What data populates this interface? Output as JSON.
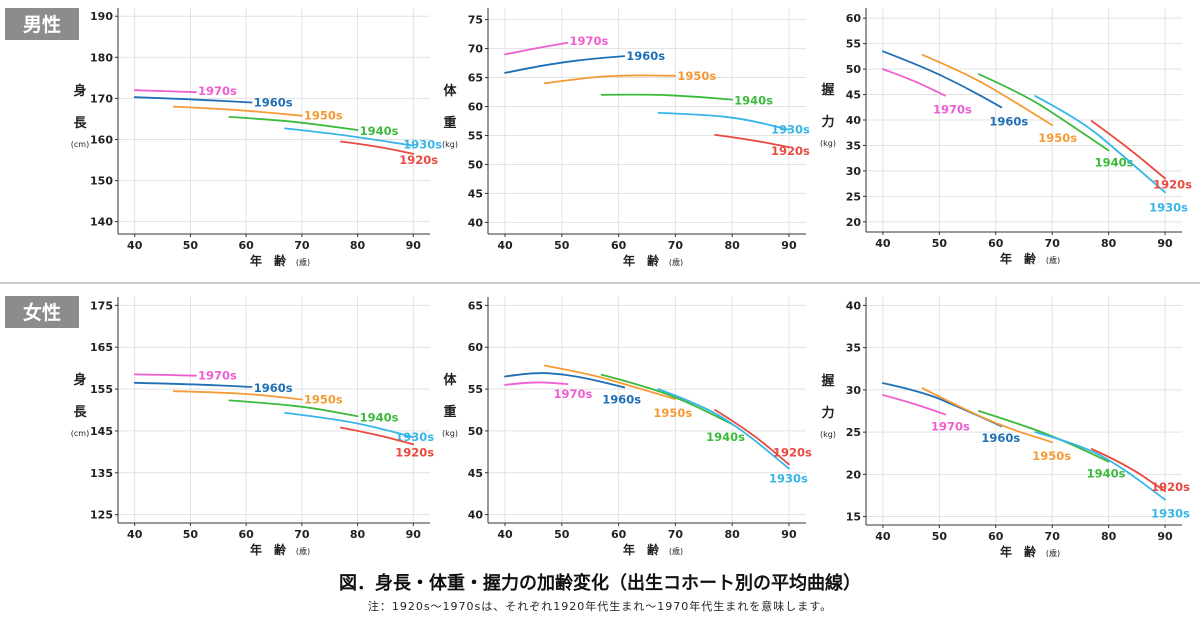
{
  "sections": [
    {
      "label": "男性"
    },
    {
      "label": "女性"
    }
  ],
  "colors": {
    "1920s": "#ea4a3f",
    "1930s": "#38b6ea",
    "1940s": "#3cba3c",
    "1950s": "#f59b35",
    "1960s": "#1f6fb5",
    "1970s": "#f05fd2"
  },
  "xlabel": "年　齢",
  "xunit": "(歳)",
  "caption": "図．身長・体重・握力の加齢変化（出生コホート別の平均曲線）",
  "note": "注：1920s～1970sは、それぞれ1920年代生まれ～1970年代生まれを意味します。",
  "chart_data": [
    {
      "type": "line",
      "section": "男性",
      "ylabel": [
        "身",
        "長"
      ],
      "yunit": "(cm)",
      "xlim": [
        37,
        93
      ],
      "ylim": [
        137,
        192
      ],
      "xticks": [
        40,
        50,
        60,
        70,
        80,
        90
      ],
      "yticks": [
        140,
        150,
        160,
        170,
        180,
        190
      ],
      "series": [
        {
          "name": "1970s",
          "points": [
            [
              40,
              172.0
            ],
            [
              45,
              171.8
            ],
            [
              51,
              171.5
            ]
          ]
        },
        {
          "name": "1960s",
          "points": [
            [
              40,
              170.3
            ],
            [
              50,
              169.8
            ],
            [
              61,
              169.0
            ]
          ]
        },
        {
          "name": "1950s",
          "points": [
            [
              47,
              168.0
            ],
            [
              55,
              167.5
            ],
            [
              62,
              166.8
            ],
            [
              70,
              165.8
            ]
          ]
        },
        {
          "name": "1940s",
          "points": [
            [
              57,
              165.5
            ],
            [
              65,
              164.8
            ],
            [
              72,
              163.8
            ],
            [
              80,
              162.3
            ]
          ]
        },
        {
          "name": "1930s",
          "points": [
            [
              67,
              162.7
            ],
            [
              75,
              161.5
            ],
            [
              82,
              160.2
            ],
            [
              90,
              158.5
            ]
          ]
        },
        {
          "name": "1920s",
          "points": [
            [
              77,
              159.5
            ],
            [
              83,
              158.5
            ],
            [
              90,
              156.5
            ]
          ]
        }
      ]
    },
    {
      "type": "line",
      "section": "男性",
      "ylabel": [
        "体",
        "重"
      ],
      "yunit": "(kg)",
      "xlim": [
        37,
        93
      ],
      "ylim": [
        38,
        77
      ],
      "xticks": [
        40,
        50,
        60,
        70,
        80,
        90
      ],
      "yticks": [
        40,
        45,
        50,
        55,
        60,
        65,
        70,
        75
      ],
      "series": [
        {
          "name": "1970s",
          "points": [
            [
              40,
              69.0
            ],
            [
              45,
              70.0
            ],
            [
              51,
              71.0
            ]
          ]
        },
        {
          "name": "1960s",
          "points": [
            [
              40,
              65.8
            ],
            [
              45,
              66.8
            ],
            [
              50,
              67.6
            ],
            [
              55,
              68.2
            ],
            [
              61,
              68.7
            ]
          ]
        },
        {
          "name": "1950s",
          "points": [
            [
              47,
              64.0
            ],
            [
              55,
              65.1
            ],
            [
              62,
              65.4
            ],
            [
              70,
              65.3
            ]
          ]
        },
        {
          "name": "1940s",
          "points": [
            [
              57,
              62.0
            ],
            [
              65,
              62.1
            ],
            [
              72,
              61.8
            ],
            [
              80,
              61.2
            ]
          ]
        },
        {
          "name": "1930s",
          "points": [
            [
              67,
              58.9
            ],
            [
              75,
              58.6
            ],
            [
              82,
              57.9
            ],
            [
              90,
              56.0
            ]
          ]
        },
        {
          "name": "1920s",
          "points": [
            [
              77,
              55.1
            ],
            [
              83,
              54.3
            ],
            [
              90,
              53.0
            ]
          ]
        }
      ]
    },
    {
      "type": "line",
      "section": "男性",
      "ylabel": [
        "握",
        "力"
      ],
      "yunit": "(kg)",
      "xlim": [
        37,
        93
      ],
      "ylim": [
        18,
        62
      ],
      "xticks": [
        40,
        50,
        60,
        70,
        80,
        90
      ],
      "yticks": [
        20,
        25,
        30,
        35,
        40,
        45,
        50,
        55,
        60
      ],
      "series": [
        {
          "name": "1970s",
          "points": [
            [
              40,
              50.0
            ],
            [
              45,
              48.0
            ],
            [
              51,
              44.8
            ]
          ]
        },
        {
          "name": "1960s",
          "points": [
            [
              40,
              53.5
            ],
            [
              47,
              50.5
            ],
            [
              54,
              46.8
            ],
            [
              61,
              42.5
            ]
          ]
        },
        {
          "name": "1950s",
          "points": [
            [
              47,
              52.8
            ],
            [
              55,
              49.0
            ],
            [
              62,
              44.5
            ],
            [
              70,
              39.0
            ]
          ]
        },
        {
          "name": "1940s",
          "points": [
            [
              57,
              49.0
            ],
            [
              65,
              45.0
            ],
            [
              72,
              40.0
            ],
            [
              80,
              34.0
            ]
          ]
        },
        {
          "name": "1930s",
          "points": [
            [
              67,
              44.7
            ],
            [
              75,
              40.0
            ],
            [
              82,
              33.5
            ],
            [
              90,
              25.8
            ]
          ]
        },
        {
          "name": "1920s",
          "points": [
            [
              77,
              39.8
            ],
            [
              83,
              35.0
            ],
            [
              90,
              28.5
            ]
          ]
        }
      ]
    },
    {
      "type": "line",
      "section": "女性",
      "ylabel": [
        "身",
        "長"
      ],
      "yunit": "(cm)",
      "xlim": [
        37,
        93
      ],
      "ylim": [
        123,
        177
      ],
      "xticks": [
        40,
        50,
        60,
        70,
        80,
        90
      ],
      "yticks": [
        125,
        135,
        145,
        155,
        165,
        175
      ],
      "series": [
        {
          "name": "1970s",
          "points": [
            [
              40,
              158.5
            ],
            [
              45,
              158.4
            ],
            [
              51,
              158.2
            ]
          ]
        },
        {
          "name": "1960s",
          "points": [
            [
              40,
              156.5
            ],
            [
              50,
              156.2
            ],
            [
              61,
              155.5
            ]
          ]
        },
        {
          "name": "1950s",
          "points": [
            [
              47,
              154.5
            ],
            [
              55,
              154.2
            ],
            [
              62,
              153.7
            ],
            [
              70,
              152.5
            ]
          ]
        },
        {
          "name": "1940s",
          "points": [
            [
              57,
              152.3
            ],
            [
              65,
              151.5
            ],
            [
              72,
              150.5
            ],
            [
              80,
              148.5
            ]
          ]
        },
        {
          "name": "1930s",
          "points": [
            [
              67,
              149.3
            ],
            [
              75,
              148.0
            ],
            [
              82,
              146.3
            ],
            [
              90,
              143.5
            ]
          ]
        },
        {
          "name": "1920s",
          "points": [
            [
              77,
              145.8
            ],
            [
              83,
              144.3
            ],
            [
              90,
              141.8
            ]
          ]
        }
      ]
    },
    {
      "type": "line",
      "section": "女性",
      "ylabel": [
        "体",
        "重"
      ],
      "yunit": "(kg)",
      "xlim": [
        37,
        93
      ],
      "ylim": [
        39,
        66
      ],
      "xticks": [
        40,
        50,
        60,
        70,
        80,
        90
      ],
      "yticks": [
        40,
        45,
        50,
        55,
        60,
        65
      ],
      "series": [
        {
          "name": "1970s",
          "points": [
            [
              40,
              55.5
            ],
            [
              45,
              55.9
            ],
            [
              51,
              55.6
            ]
          ]
        },
        {
          "name": "1960s",
          "points": [
            [
              40,
              56.5
            ],
            [
              45,
              57.0
            ],
            [
              50,
              56.8
            ],
            [
              55,
              56.2
            ],
            [
              61,
              55.2
            ]
          ]
        },
        {
          "name": "1950s",
          "points": [
            [
              47,
              57.8
            ],
            [
              55,
              56.8
            ],
            [
              62,
              55.4
            ],
            [
              70,
              53.8
            ]
          ]
        },
        {
          "name": "1940s",
          "points": [
            [
              57,
              56.7
            ],
            [
              65,
              55.3
            ],
            [
              72,
              53.5
            ],
            [
              80,
              50.8
            ]
          ]
        },
        {
          "name": "1930s",
          "points": [
            [
              67,
              55.0
            ],
            [
              75,
              53.0
            ],
            [
              82,
              50.0
            ],
            [
              90,
              45.5
            ]
          ]
        },
        {
          "name": "1920s",
          "points": [
            [
              77,
              52.5
            ],
            [
              83,
              50.0
            ],
            [
              90,
              46.0
            ]
          ]
        }
      ]
    },
    {
      "type": "line",
      "section": "女性",
      "ylabel": [
        "握",
        "力"
      ],
      "yunit": "(kg)",
      "xlim": [
        37,
        93
      ],
      "ylim": [
        14,
        41
      ],
      "xticks": [
        40,
        50,
        60,
        70,
        80,
        90
      ],
      "yticks": [
        15,
        20,
        25,
        30,
        35,
        40
      ],
      "series": [
        {
          "name": "1970s",
          "points": [
            [
              40,
              29.4
            ],
            [
              45,
              28.5
            ],
            [
              51,
              27.1
            ]
          ]
        },
        {
          "name": "1960s",
          "points": [
            [
              40,
              30.8
            ],
            [
              47,
              29.8
            ],
            [
              54,
              27.8
            ],
            [
              61,
              25.7
            ]
          ]
        },
        {
          "name": "1950s",
          "points": [
            [
              47,
              30.2
            ],
            [
              55,
              27.5
            ],
            [
              62,
              25.5
            ],
            [
              70,
              23.8
            ]
          ]
        },
        {
          "name": "1940s",
          "points": [
            [
              57,
              27.5
            ],
            [
              65,
              25.8
            ],
            [
              72,
              24.0
            ],
            [
              80,
              21.5
            ]
          ]
        },
        {
          "name": "1930s",
          "points": [
            [
              67,
              25.0
            ],
            [
              75,
              23.5
            ],
            [
              82,
              21.0
            ],
            [
              90,
              17.0
            ]
          ]
        },
        {
          "name": "1920s",
          "points": [
            [
              77,
              23.0
            ],
            [
              83,
              21.2
            ],
            [
              90,
              18.0
            ]
          ]
        }
      ]
    }
  ]
}
